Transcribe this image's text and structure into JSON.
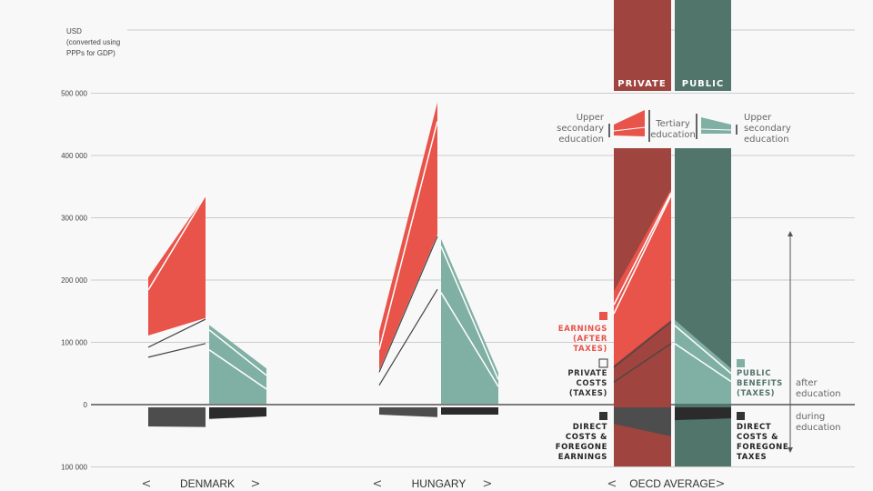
{
  "colors": {
    "earnings": "#e8534a",
    "public_benefits": "#80b0a3",
    "private_column": "#a0443f",
    "public_column": "#52756b",
    "during_private": "#4d4d4d",
    "during_public": "#2b2b2b",
    "cost_line": "#444444",
    "grid": "#cccccc"
  },
  "chart_data": {
    "type": "area",
    "unit_label": [
      "USD",
      "(converted using",
      "PPPs for GDP)"
    ],
    "ylim": [
      -100000,
      600000
    ],
    "yticks": [
      500000,
      400000,
      300000,
      200000,
      100000,
      0,
      -100000
    ],
    "ytick_labels": [
      "500 000",
      "400 000",
      "300 000",
      "200 000",
      "100 000",
      "0",
      "100 000"
    ],
    "grid": true,
    "countries": [
      {
        "name": "DENMARK",
        "earnings": {
          "left": [
            111000,
            204000
          ],
          "right": [
            139000,
            336000
          ],
          "dividers": [
            [
              184000,
              336000
            ]
          ]
        },
        "private_costs": [
          [
            95000,
            140000
          ],
          [
            79000,
            101000
          ]
        ],
        "public_benefits": {
          "left": 128000,
          "right": 58000,
          "dividers": [
            [
              120000,
              47000
            ],
            [
              88000,
              25000
            ]
          ]
        },
        "during": {
          "private": [
            -35000,
            -36000
          ],
          "public": [
            -23000,
            -19000
          ]
        }
      },
      {
        "name": "HUNGARY",
        "earnings": {
          "left": [
            55000,
            117000
          ],
          "right": [
            273000,
            485000
          ],
          "dividers": [
            [
              88000,
              455000
            ]
          ]
        },
        "private_costs": [
          [
            55000,
            273000
          ],
          [
            34000,
            188000
          ]
        ],
        "public_benefits": {
          "left": 266000,
          "right": 51000,
          "dividers": [
            [
              254000,
              40000
            ],
            [
              180000,
              29000
            ]
          ]
        },
        "during": {
          "private": [
            -16000,
            -20000
          ],
          "public": [
            -16000,
            -16000
          ]
        }
      },
      {
        "name": "OECD AVERAGE",
        "earnings": {
          "left": [
            63000,
            182000
          ],
          "right": [
            136000,
            346000
          ],
          "dividers": [
            [
              160000,
              340000
            ],
            [
              146000,
              336000
            ]
          ]
        },
        "private_costs": [
          [
            63000,
            136000
          ],
          [
            39000,
            101000
          ]
        ],
        "public_benefits": {
          "left": 136000,
          "right": 58000,
          "dividers": [
            [
              127000,
              50000
            ],
            [
              98000,
              37000
            ]
          ]
        },
        "during": {
          "private": [
            -31000,
            -51000
          ],
          "public": [
            -25000,
            -22000
          ]
        }
      }
    ]
  },
  "columns": {
    "private": "PRIVATE",
    "public": "PUBLIC"
  },
  "education_legend": {
    "upper_secondary_left": [
      "Upper",
      "secondary",
      "education"
    ],
    "tertiary": [
      "Tertiary",
      "education"
    ],
    "upper_secondary_right": [
      "Upper",
      "secondary",
      "education"
    ]
  },
  "legend": {
    "earnings": [
      "EARNINGS",
      "(AFTER",
      "TAXES)"
    ],
    "private_costs": [
      "PRIVATE",
      "COSTS",
      "(TAXES)"
    ],
    "direct_costs_private": [
      "DIRECT",
      "COSTS &",
      "FOREGONE",
      "EARNINGS"
    ],
    "public_benefits": [
      "PUBLIC",
      "BENEFITS",
      "(TAXES)"
    ],
    "direct_costs_public": [
      "DIRECT",
      "COSTS &",
      "FOREGONE",
      "TAXES"
    ]
  },
  "phases": {
    "after": [
      "after",
      "education"
    ],
    "during": [
      "during",
      "education"
    ]
  },
  "nav": {
    "prev": "<",
    "next": ">"
  }
}
